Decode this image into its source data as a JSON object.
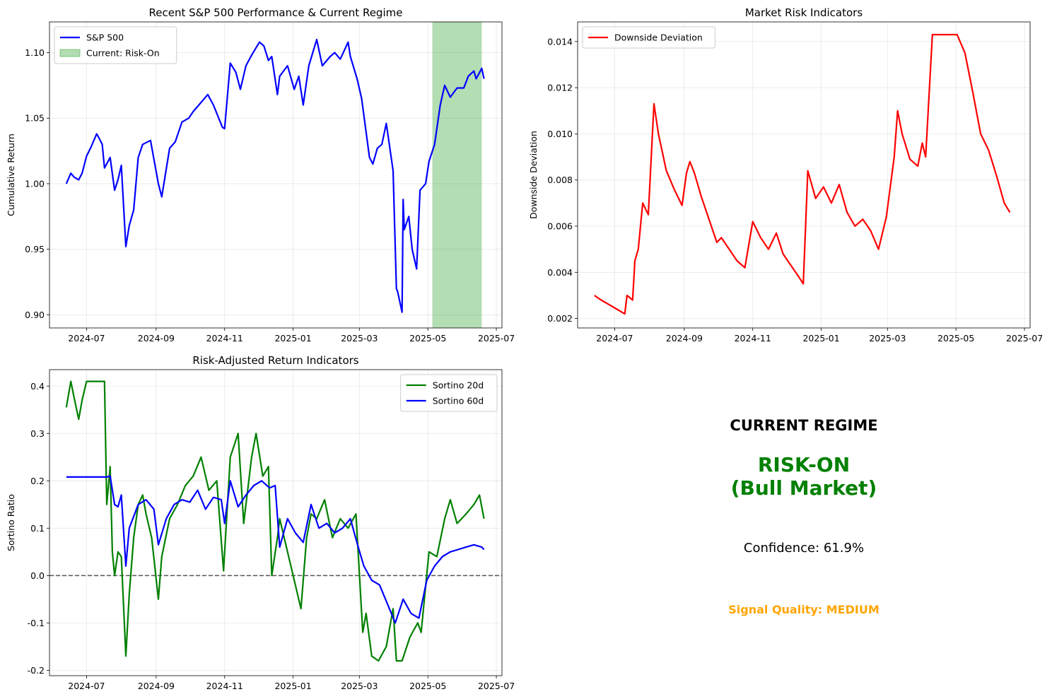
{
  "chart_data": [
    {
      "type": "line",
      "title": "Recent S&P 500 Performance & Current Regime",
      "xlabel": "",
      "ylabel": "Cumulative Return",
      "xlim": [
        "2024-05-29",
        "2025-07-06"
      ],
      "ylim": [
        0.89,
        1.1234
      ],
      "yticks": [
        0.9,
        0.95,
        1.0,
        1.05,
        1.1
      ],
      "ytick_labels": [
        "0.90",
        "0.95",
        "1.00",
        "1.05",
        "1.10"
      ],
      "xticks": [
        "2024-07-01",
        "2024-09-01",
        "2024-11-01",
        "2025-01-01",
        "2025-03-01",
        "2025-05-01",
        "2025-07-01"
      ],
      "xtick_labels": [
        "2024-07",
        "2024-09",
        "2024-11",
        "2025-01",
        "2025-03",
        "2025-05",
        "2025-07"
      ],
      "grid": true,
      "legend": "upper left",
      "shaded_region": {
        "label": "Current: Risk-On",
        "start": "2025-05-05",
        "end": "2025-06-18",
        "color": "#2ca02c"
      },
      "series": [
        {
          "name": "S&P 500",
          "color": "#0000ff",
          "x": [
            "2024-06-13",
            "2024-06-17",
            "2024-06-20",
            "2024-06-24",
            "2024-06-27",
            "2024-07-01",
            "2024-07-05",
            "2024-07-10",
            "2024-07-12",
            "2024-07-15",
            "2024-07-17",
            "2024-07-22",
            "2024-07-26",
            "2024-07-29",
            "2024-08-01",
            "2024-08-05",
            "2024-08-08",
            "2024-08-12",
            "2024-08-16",
            "2024-08-20",
            "2024-08-27",
            "2024-09-03",
            "2024-09-06",
            "2024-09-13",
            "2024-09-18",
            "2024-09-24",
            "2024-09-30",
            "2024-10-04",
            "2024-10-11",
            "2024-10-17",
            "2024-10-22",
            "2024-10-30",
            "2024-11-01",
            "2024-11-06",
            "2024-11-11",
            "2024-11-15",
            "2024-11-20",
            "2024-11-25",
            "2024-12-02",
            "2024-12-06",
            "2024-12-10",
            "2024-12-13",
            "2024-12-18",
            "2024-12-20",
            "2024-12-27",
            "2025-01-02",
            "2025-01-06",
            "2025-01-10",
            "2025-01-15",
            "2025-01-22",
            "2025-01-27",
            "2025-02-03",
            "2025-02-07",
            "2025-02-12",
            "2025-02-19",
            "2025-02-21",
            "2025-02-27",
            "2025-03-03",
            "2025-03-10",
            "2025-03-13",
            "2025-03-17",
            "2025-03-21",
            "2025-03-25",
            "2025-03-31",
            "2025-04-03",
            "2025-04-04",
            "2025-04-08",
            "2025-04-09",
            "2025-04-10",
            "2025-04-14",
            "2025-04-17",
            "2025-04-21",
            "2025-04-24",
            "2025-04-29",
            "2025-05-02",
            "2025-05-07",
            "2025-05-12",
            "2025-05-16",
            "2025-05-21",
            "2025-05-27",
            "2025-06-02",
            "2025-06-06",
            "2025-06-11",
            "2025-06-13",
            "2025-06-18",
            "2025-06-20"
          ],
          "y": [
            1.0,
            1.008,
            1.005,
            1.003,
            1.008,
            1.021,
            1.028,
            1.038,
            1.035,
            1.03,
            1.012,
            1.02,
            0.995,
            1.003,
            1.014,
            0.952,
            0.968,
            0.98,
            1.02,
            1.03,
            1.033,
            1.0,
            0.99,
            1.027,
            1.032,
            1.047,
            1.05,
            1.055,
            1.062,
            1.068,
            1.06,
            1.043,
            1.042,
            1.092,
            1.085,
            1.072,
            1.09,
            1.098,
            1.108,
            1.105,
            1.094,
            1.097,
            1.068,
            1.082,
            1.09,
            1.072,
            1.082,
            1.06,
            1.09,
            1.11,
            1.09,
            1.097,
            1.1,
            1.095,
            1.108,
            1.097,
            1.08,
            1.065,
            1.02,
            1.015,
            1.027,
            1.03,
            1.046,
            1.01,
            0.92,
            0.918,
            0.902,
            0.988,
            0.965,
            0.975,
            0.95,
            0.935,
            0.995,
            1.0,
            1.017,
            1.03,
            1.06,
            1.075,
            1.066,
            1.073,
            1.073,
            1.082,
            1.086,
            1.08,
            1.088,
            1.08
          ]
        }
      ]
    },
    {
      "type": "line",
      "title": "Market Risk Indicators",
      "xlabel": "",
      "ylabel": "Downside Deviation",
      "xlim": [
        "2024-05-29",
        "2025-07-06"
      ],
      "ylim": [
        0.00159,
        0.01485
      ],
      "yticks": [
        0.002,
        0.004,
        0.006,
        0.008,
        0.01,
        0.012,
        0.014
      ],
      "ytick_labels": [
        "0.002",
        "0.004",
        "0.006",
        "0.008",
        "0.010",
        "0.012",
        "0.014"
      ],
      "xticks": [
        "2024-07-01",
        "2024-09-01",
        "2024-11-01",
        "2025-01-01",
        "2025-03-01",
        "2025-05-01",
        "2025-07-01"
      ],
      "xtick_labels": [
        "2024-07",
        "2024-09",
        "2024-11",
        "2025-01",
        "2025-03",
        "2025-05",
        "2025-07"
      ],
      "grid": true,
      "legend": "upper left",
      "series": [
        {
          "name": "Downside Deviation",
          "color": "#ff0000",
          "x": [
            "2024-06-13",
            "2024-06-19",
            "2024-06-26",
            "2024-07-03",
            "2024-07-10",
            "2024-07-12",
            "2024-07-17",
            "2024-07-19",
            "2024-07-22",
            "2024-07-26",
            "2024-07-31",
            "2024-08-05",
            "2024-08-09",
            "2024-08-16",
            "2024-08-23",
            "2024-08-30",
            "2024-09-03",
            "2024-09-06",
            "2024-09-10",
            "2024-09-16",
            "2024-09-23",
            "2024-09-30",
            "2024-10-04",
            "2024-10-11",
            "2024-10-18",
            "2024-10-25",
            "2024-11-01",
            "2024-11-08",
            "2024-11-15",
            "2024-11-22",
            "2024-11-28",
            "2024-12-05",
            "2024-12-12",
            "2024-12-16",
            "2024-12-20",
            "2024-12-27",
            "2025-01-03",
            "2025-01-10",
            "2025-01-17",
            "2025-01-24",
            "2025-01-31",
            "2025-02-07",
            "2025-02-14",
            "2025-02-21",
            "2025-02-28",
            "2025-03-07",
            "2025-03-10",
            "2025-03-14",
            "2025-03-21",
            "2025-03-28",
            "2025-04-01",
            "2025-04-04",
            "2025-04-10",
            "2025-04-17",
            "2025-05-02",
            "2025-05-09",
            "2025-05-16",
            "2025-05-23",
            "2025-05-30",
            "2025-06-06",
            "2025-06-13",
            "2025-06-18"
          ],
          "y": [
            0.003,
            0.0028,
            0.0026,
            0.0024,
            0.0022,
            0.003,
            0.0028,
            0.0045,
            0.005,
            0.007,
            0.0065,
            0.0113,
            0.01,
            0.0084,
            0.0076,
            0.0069,
            0.0083,
            0.0088,
            0.0083,
            0.0073,
            0.0063,
            0.0053,
            0.0055,
            0.005,
            0.0045,
            0.0042,
            0.0062,
            0.0055,
            0.005,
            0.0057,
            0.0048,
            0.0043,
            0.0038,
            0.0035,
            0.0084,
            0.0072,
            0.0077,
            0.007,
            0.0078,
            0.0066,
            0.006,
            0.0063,
            0.0058,
            0.005,
            0.0064,
            0.009,
            0.011,
            0.01,
            0.0089,
            0.0086,
            0.0096,
            0.009,
            0.0143,
            0.0143,
            0.0143,
            0.0135,
            0.0118,
            0.01,
            0.0093,
            0.0082,
            0.007,
            0.0066
          ]
        }
      ]
    },
    {
      "type": "line",
      "title": "Risk-Adjusted Return Indicators",
      "xlabel": "",
      "ylabel": "Sortino Ratio",
      "xlim": [
        "2024-05-29",
        "2025-07-06"
      ],
      "ylim": [
        -0.2114,
        0.4347
      ],
      "yticks": [
        -0.2,
        -0.1,
        0.0,
        0.1,
        0.2,
        0.3,
        0.4
      ],
      "ytick_labels": [
        "-0.2",
        "-0.1",
        "0.0",
        "0.1",
        "0.2",
        "0.3",
        "0.4"
      ],
      "xticks": [
        "2024-07-01",
        "2024-09-01",
        "2024-11-01",
        "2025-01-01",
        "2025-03-01",
        "2025-05-01",
        "2025-07-01"
      ],
      "xtick_labels": [
        "2024-07",
        "2024-09",
        "2024-11",
        "2025-01",
        "2025-03",
        "2025-05",
        "2025-07"
      ],
      "grid": true,
      "legend": "upper right",
      "reference_line": {
        "y": 0.0,
        "style": "dashed",
        "color": "#555555"
      },
      "series": [
        {
          "name": "Sortino 20d",
          "color": "#008000",
          "x": [
            "2024-06-13",
            "2024-06-17",
            "2024-06-20",
            "2024-06-24",
            "2024-06-27",
            "2024-07-01",
            "2024-07-08",
            "2024-07-17",
            "2024-07-19",
            "2024-07-22",
            "2024-07-24",
            "2024-07-26",
            "2024-07-29",
            "2024-08-01",
            "2024-08-05",
            "2024-08-08",
            "2024-08-12",
            "2024-08-16",
            "2024-08-20",
            "2024-08-23",
            "2024-08-28",
            "2024-09-03",
            "2024-09-06",
            "2024-09-13",
            "2024-09-20",
            "2024-09-27",
            "2024-10-04",
            "2024-10-11",
            "2024-10-18",
            "2024-10-25",
            "2024-10-31",
            "2024-11-06",
            "2024-11-13",
            "2024-11-18",
            "2024-11-25",
            "2024-11-29",
            "2024-12-05",
            "2024-12-10",
            "2024-12-13",
            "2024-12-18",
            "2024-12-20",
            "2024-12-27",
            "2025-01-03",
            "2025-01-08",
            "2025-01-13",
            "2025-01-17",
            "2025-01-22",
            "2025-01-29",
            "2025-02-05",
            "2025-02-12",
            "2025-02-19",
            "2025-02-26",
            "2025-03-04",
            "2025-03-07",
            "2025-03-12",
            "2025-03-18",
            "2025-03-25",
            "2025-03-31",
            "2025-04-03",
            "2025-04-08",
            "2025-04-15",
            "2025-04-22",
            "2025-04-25",
            "2025-05-02",
            "2025-05-09",
            "2025-05-16",
            "2025-05-21",
            "2025-05-27",
            "2025-06-04",
            "2025-06-11",
            "2025-06-16",
            "2025-06-20"
          ],
          "y": [
            0.355,
            0.41,
            0.375,
            0.33,
            0.37,
            0.41,
            0.41,
            0.41,
            0.15,
            0.23,
            0.05,
            0.0,
            0.05,
            0.04,
            -0.17,
            -0.04,
            0.08,
            0.15,
            0.17,
            0.13,
            0.08,
            -0.05,
            0.04,
            0.12,
            0.15,
            0.19,
            0.21,
            0.25,
            0.18,
            0.2,
            0.01,
            0.25,
            0.3,
            0.11,
            0.25,
            0.3,
            0.21,
            0.23,
            0.0,
            0.08,
            0.12,
            0.05,
            -0.02,
            -0.07,
            0.08,
            0.13,
            0.12,
            0.16,
            0.08,
            0.12,
            0.1,
            0.13,
            -0.12,
            -0.08,
            -0.17,
            -0.18,
            -0.15,
            -0.07,
            -0.18,
            -0.18,
            -0.13,
            -0.1,
            -0.12,
            0.05,
            0.04,
            0.12,
            0.16,
            0.11,
            0.13,
            0.15,
            0.17,
            0.12
          ]
        },
        {
          "name": "Sortino 60d",
          "color": "#0000ff",
          "x": [
            "2024-06-13",
            "2024-07-19",
            "2024-07-22",
            "2024-07-26",
            "2024-07-29",
            "2024-08-01",
            "2024-08-05",
            "2024-08-08",
            "2024-08-16",
            "2024-08-23",
            "2024-08-30",
            "2024-09-03",
            "2024-09-10",
            "2024-09-17",
            "2024-09-24",
            "2024-10-01",
            "2024-10-08",
            "2024-10-15",
            "2024-10-22",
            "2024-10-29",
            "2024-11-01",
            "2024-11-06",
            "2024-11-13",
            "2024-11-20",
            "2024-11-27",
            "2024-12-04",
            "2024-12-11",
            "2024-12-16",
            "2024-12-20",
            "2024-12-27",
            "2025-01-03",
            "2025-01-10",
            "2025-01-17",
            "2025-01-24",
            "2025-01-31",
            "2025-02-07",
            "2025-02-14",
            "2025-02-21",
            "2025-02-28",
            "2025-03-05",
            "2025-03-12",
            "2025-03-19",
            "2025-03-26",
            "2025-04-02",
            "2025-04-09",
            "2025-04-16",
            "2025-04-23",
            "2025-04-30",
            "2025-05-07",
            "2025-05-14",
            "2025-05-21",
            "2025-05-28",
            "2025-06-04",
            "2025-06-11",
            "2025-06-18",
            "2025-06-20"
          ],
          "y": [
            0.208,
            0.208,
            0.21,
            0.15,
            0.145,
            0.17,
            0.02,
            0.1,
            0.15,
            0.16,
            0.14,
            0.065,
            0.12,
            0.15,
            0.16,
            0.155,
            0.18,
            0.14,
            0.165,
            0.16,
            0.11,
            0.2,
            0.145,
            0.17,
            0.19,
            0.2,
            0.185,
            0.19,
            0.06,
            0.12,
            0.09,
            0.07,
            0.15,
            0.1,
            0.11,
            0.09,
            0.1,
            0.12,
            0.06,
            0.02,
            -0.01,
            -0.02,
            -0.06,
            -0.1,
            -0.05,
            -0.08,
            -0.09,
            -0.01,
            0.02,
            0.04,
            0.05,
            0.055,
            0.06,
            0.065,
            0.06,
            0.055
          ]
        }
      ]
    }
  ],
  "regime_panel": {
    "title": "CURRENT REGIME",
    "regime_line1": "RISK-ON",
    "regime_line2": "(Bull Market)",
    "confidence": "Confidence: 61.9%",
    "signal_quality": "Signal Quality: MEDIUM",
    "regime_color": "#008000",
    "quality_color": "#ffa500"
  }
}
